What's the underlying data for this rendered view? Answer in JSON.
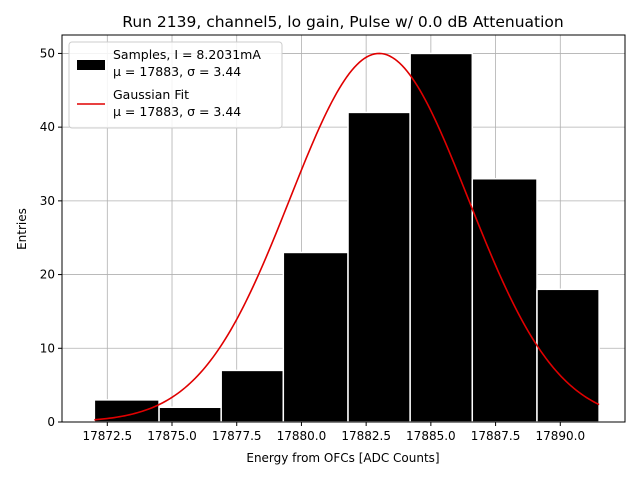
{
  "chart_data": {
    "type": "bar",
    "title": "Run 2139, channel5, lo gain, Pulse w/ 0.0 dB Attenuation",
    "xlabel": "Energy from OFCs [ADC Counts]",
    "ylabel": "Entries",
    "xlim": [
      17870.75,
      17892.5
    ],
    "ylim": [
      0,
      52.5
    ],
    "grid": true,
    "x_ticks": [
      17872.5,
      17875.0,
      17877.5,
      17880.0,
      17882.5,
      17885.0,
      17887.5,
      17890.0
    ],
    "x_tick_labels": [
      "17872.5",
      "17875.0",
      "17877.5",
      "17880.0",
      "17882.5",
      "17885.0",
      "17887.5",
      "17890.0"
    ],
    "y_ticks": [
      0,
      10,
      20,
      30,
      40,
      50
    ],
    "y_tick_labels": [
      "0",
      "10",
      "20",
      "30",
      "40",
      "50"
    ],
    "bins": [
      {
        "left": 17872.0,
        "right": 17874.5,
        "count": 3
      },
      {
        "left": 17874.5,
        "right": 17876.9,
        "count": 2
      },
      {
        "left": 17876.9,
        "right": 17879.3,
        "count": 7
      },
      {
        "left": 17879.3,
        "right": 17881.8,
        "count": 23
      },
      {
        "left": 17881.8,
        "right": 17884.2,
        "count": 42
      },
      {
        "left": 17884.2,
        "right": 17886.6,
        "count": 50
      },
      {
        "left": 17886.6,
        "right": 17889.1,
        "count": 33
      },
      {
        "left": 17889.1,
        "right": 17891.5,
        "count": 18
      }
    ],
    "series": [
      {
        "name": "Samples, I = 8.2031mA",
        "stats": "μ = 17883, σ = 3.44",
        "kind": "histogram",
        "color": "#000000"
      },
      {
        "name": "Gaussian Fit",
        "stats": "μ = 17883, σ = 3.44",
        "kind": "line",
        "color": "#e00000",
        "fit": {
          "amplitude": 50,
          "mean": 17883.0,
          "sigma": 3.44,
          "x_range": [
            17872.0,
            17891.5
          ]
        }
      }
    ],
    "legend_position": "top-left"
  }
}
